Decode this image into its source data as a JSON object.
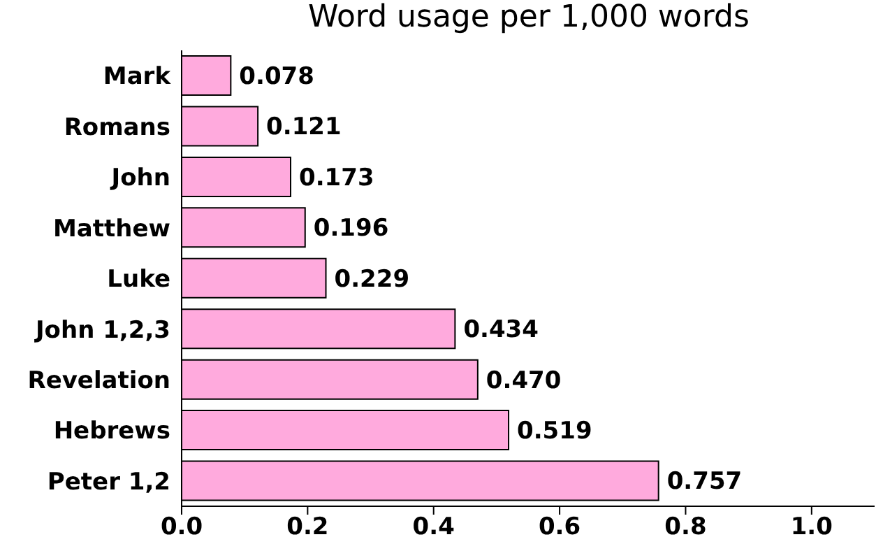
{
  "chart_data": {
    "type": "bar",
    "orientation": "horizontal",
    "title": "Word usage per 1,000 words",
    "categories": [
      "Mark",
      "Romans",
      "John",
      "Matthew",
      "Luke",
      "John 1,2,3",
      "Revelation",
      "Hebrews",
      "Peter 1,2"
    ],
    "values": [
      0.078,
      0.121,
      0.173,
      0.196,
      0.229,
      0.434,
      0.47,
      0.519,
      0.757
    ],
    "value_labels": [
      "0.078",
      "0.121",
      "0.173",
      "0.196",
      "0.229",
      "0.434",
      "0.470",
      "0.519",
      "0.757"
    ],
    "color": "#ffaadd",
    "xlim": [
      0,
      1.1
    ],
    "xticks": [
      {
        "value": 0,
        "label": "0.0"
      },
      {
        "value": 0.2,
        "label": "0.2"
      },
      {
        "value": 0.4,
        "label": "0.4"
      },
      {
        "value": 0.6,
        "label": "0.6"
      },
      {
        "value": 0.8,
        "label": "0.8"
      },
      {
        "value": 1.0,
        "label": "1.0"
      }
    ],
    "grid": false
  }
}
